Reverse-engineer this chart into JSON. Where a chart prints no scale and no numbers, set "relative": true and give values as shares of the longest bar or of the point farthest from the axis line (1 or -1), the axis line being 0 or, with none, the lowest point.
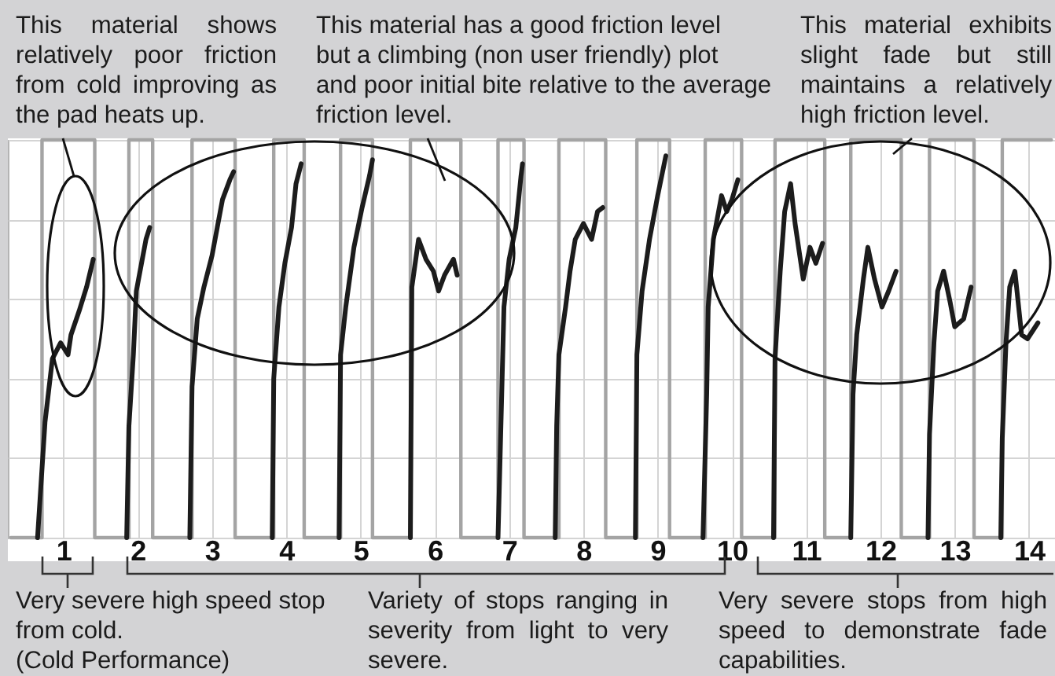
{
  "chart_data": {
    "type": "line",
    "relative": true,
    "xlim": [
      0.25,
      14.35
    ],
    "xticks": [
      1,
      2,
      3,
      4,
      5,
      6,
      7,
      8,
      9,
      10,
      11,
      12,
      13,
      14
    ],
    "grid": true,
    "annotations": [
      "This material shows\nrelatively poor friction\nfrom cold improving as\nthe pad heats up.",
      "This material has a good friction level\nbut a climbing (non user friendly) plot\nand poor initial bite relative to the average\nfriction level.",
      "This material exhibits\nslight fade but still\nmaintains a relatively\nhigh friction level.",
      "Very severe high speed stop\nfrom cold.\n(Cold Performance)",
      "Variety of stops ranging in\nseverity from light to very\nsevere.",
      "Very severe stops from high\nspeed to demonstrate fade\ncapabilities."
    ],
    "series": [
      {
        "color": "#a4a4a4",
        "x": [
          0.29,
          0.71,
          0.71,
          1.42,
          1.42,
          1.88,
          1.88,
          2.2,
          2.2,
          2.73,
          2.73,
          3.31,
          3.31,
          3.83,
          3.83,
          4.24,
          4.24,
          4.73,
          4.73,
          5.16,
          5.16,
          5.67,
          5.67,
          6.35,
          6.35,
          6.85,
          6.85,
          7.2,
          7.2,
          7.67,
          7.67,
          8.3,
          8.3,
          8.72,
          8.72,
          9.16,
          9.16,
          9.64,
          9.64,
          10.13,
          10.13,
          10.58,
          10.58,
          11.25,
          11.25,
          11.6,
          11.6,
          12.28,
          12.28,
          12.66,
          12.66,
          13.26,
          13.26,
          13.64,
          13.64,
          14.3
        ],
        "values": [
          0,
          0,
          1,
          1,
          0,
          0,
          1,
          1,
          0,
          0,
          1,
          1,
          0,
          0,
          1,
          1,
          0,
          0,
          1,
          1,
          0,
          0,
          1,
          1,
          0,
          0,
          1,
          1,
          0,
          0,
          1,
          1,
          0,
          0,
          1,
          1,
          0,
          0,
          1,
          1,
          0,
          0,
          1,
          1,
          0,
          0,
          1,
          1,
          0,
          0,
          1,
          1,
          0,
          0,
          1,
          1
        ]
      },
      {
        "color": "#1c1c1c",
        "x": [
          0.65,
          0.75,
          0.85,
          0.96,
          1.06,
          1.1,
          1.21,
          1.31,
          1.4,
          1.63,
          1.85,
          1.88,
          1.94,
          1.98,
          2.05,
          2.11,
          2.16,
          2.45,
          2.7,
          2.73,
          2.8,
          2.89,
          3,
          3.07,
          3.14,
          3.24,
          3.29,
          3.57,
          3.81,
          3.83,
          3.9,
          3.98,
          4.07,
          4.13,
          4.2,
          4.49,
          4.71,
          4.73,
          4.8,
          4.91,
          5.02,
          5.12,
          5.16,
          5.43,
          5.67,
          5.69,
          5.78,
          5.88,
          5.98,
          6.05,
          6.13,
          6.25,
          6.3,
          6.6,
          6.85,
          6.9,
          6.93,
          7,
          7.09,
          7.16,
          7.18,
          7.44,
          7.62,
          7.64,
          7.67,
          7.76,
          7.82,
          7.89,
          8,
          8.11,
          8.19,
          8.26,
          8.51,
          8.7,
          8.72,
          8.79,
          8.89,
          9,
          9.11,
          9.39,
          9.61,
          9.66,
          9.68,
          9.75,
          9.86,
          9.93,
          10,
          10.08,
          10.35,
          10.56,
          10.58,
          10.65,
          10.71,
          10.79,
          10.85,
          10.96,
          11.05,
          11.13,
          11.22,
          11.42,
          11.6,
          11.63,
          11.68,
          11.77,
          11.83,
          11.92,
          12.02,
          12.11,
          12.21,
          12.47,
          12.64,
          12.66,
          12.72,
          12.77,
          12.85,
          12.94,
          13,
          13.12,
          13.22,
          13.45,
          13.62,
          13.64,
          13.69,
          13.74,
          13.81,
          13.9,
          13.98,
          14.12
        ],
        "values": [
          0,
          0.29,
          0.45,
          0.49,
          0.46,
          0.51,
          0.57,
          0.63,
          0.7,
          null,
          0,
          0.28,
          0.46,
          0.62,
          0.69,
          0.75,
          0.78,
          null,
          0,
          0.38,
          0.55,
          0.63,
          0.71,
          0.78,
          0.85,
          0.9,
          0.92,
          null,
          0,
          0.4,
          0.58,
          0.69,
          0.78,
          0.89,
          0.94,
          null,
          0,
          0.46,
          0.58,
          0.73,
          0.83,
          0.91,
          0.95,
          null,
          0,
          0.63,
          0.75,
          0.7,
          0.67,
          0.62,
          0.66,
          0.7,
          0.66,
          null,
          0,
          0.36,
          0.58,
          0.7,
          0.78,
          0.91,
          0.94,
          null,
          0,
          0.28,
          0.46,
          0.58,
          0.67,
          0.75,
          0.79,
          0.75,
          0.82,
          0.83,
          null,
          0,
          0.46,
          0.62,
          0.75,
          0.86,
          0.96,
          null,
          0,
          0.36,
          0.58,
          0.75,
          0.86,
          0.82,
          0.85,
          0.9,
          null,
          0,
          0.45,
          0.67,
          0.82,
          0.89,
          0.79,
          0.65,
          0.73,
          0.69,
          0.74,
          null,
          0,
          0.36,
          0.51,
          0.65,
          0.73,
          0.65,
          0.58,
          0.62,
          0.67,
          null,
          0,
          0.26,
          0.49,
          0.62,
          0.67,
          0.59,
          0.53,
          0.55,
          0.63,
          null,
          0,
          0.25,
          0.49,
          0.63,
          0.67,
          0.51,
          0.5,
          0.54
        ]
      }
    ]
  }
}
